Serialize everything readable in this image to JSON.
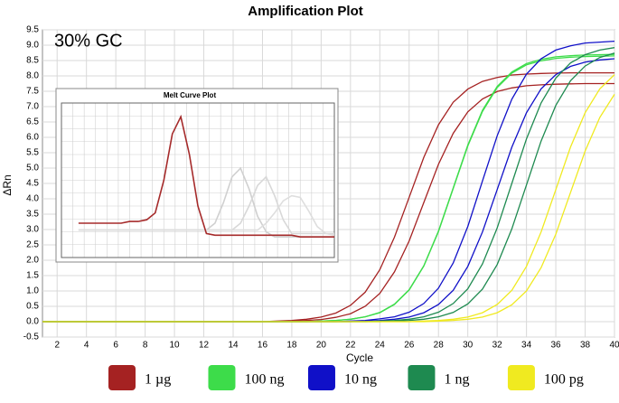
{
  "chart_data": [
    {
      "type": "line",
      "title": "Amplification Plot",
      "annotation": "30% GC",
      "x_label": "Cycle",
      "y_label": "ΔRn",
      "x": [
        1,
        2,
        3,
        4,
        5,
        6,
        7,
        8,
        9,
        10,
        11,
        12,
        13,
        14,
        15,
        16,
        17,
        18,
        19,
        20,
        21,
        22,
        23,
        24,
        25,
        26,
        27,
        28,
        29,
        30,
        31,
        32,
        33,
        34,
        35,
        36,
        37,
        38,
        39,
        40
      ],
      "xlim": [
        1,
        40
      ],
      "xticks": [
        2,
        4,
        6,
        8,
        10,
        12,
        14,
        16,
        18,
        20,
        22,
        24,
        26,
        28,
        30,
        32,
        34,
        36,
        38,
        40
      ],
      "ylim": [
        -0.5,
        9.5
      ],
      "yticks": [
        -0.5,
        {
          "value": 0,
          "label": "0.0"
        },
        0.5,
        {
          "value": 1,
          "label": "1.0"
        },
        1.5,
        {
          "value": 2,
          "label": "2.0"
        },
        2.5,
        {
          "value": 3,
          "label": "3.0"
        },
        3.5,
        {
          "value": 4,
          "label": "4.0"
        },
        4.5,
        {
          "value": 5,
          "label": "5.0"
        },
        5.5,
        {
          "value": 6,
          "label": "6.0"
        },
        6.5,
        {
          "value": 7,
          "label": "7.0"
        },
        7.5,
        {
          "value": 8,
          "label": "8.0"
        },
        8.5,
        {
          "value": 9,
          "label": "9.0"
        },
        9.5
      ],
      "grid": true,
      "series": [
        {
          "name": "1 µg",
          "color": "#a52222",
          "values": [
            0,
            0,
            0,
            0,
            0,
            0,
            0,
            0,
            0,
            0,
            0,
            0,
            0,
            0,
            0,
            0,
            0.02,
            0.04,
            0.08,
            0.15,
            0.28,
            0.53,
            0.96,
            1.69,
            2.75,
            4.05,
            5.35,
            6.41,
            7.14,
            7.57,
            7.82,
            7.95,
            8.03,
            8.06,
            8.08,
            8.09,
            8.1,
            8.1,
            8.1,
            8.1
          ]
        },
        {
          "name": "1 µg",
          "color": "#a52222",
          "values": [
            0,
            0,
            0,
            0,
            0,
            0,
            0,
            0,
            0,
            0,
            0,
            0,
            0,
            0,
            0,
            0,
            0,
            0.02,
            0.04,
            0.07,
            0.14,
            0.26,
            0.5,
            0.92,
            1.62,
            2.63,
            3.88,
            5.12,
            6.13,
            6.83,
            7.25,
            7.49,
            7.61,
            7.68,
            7.71,
            7.73,
            7.74,
            7.75,
            7.75,
            7.75
          ]
        },
        {
          "name": "100 ng",
          "color": "#3ddc4a",
          "values": [
            0,
            0,
            0,
            0,
            0,
            0,
            0,
            0,
            0,
            0,
            0,
            0,
            0,
            0,
            0,
            0,
            0,
            0,
            0,
            0.02,
            0.04,
            0.08,
            0.16,
            0.3,
            0.57,
            1.04,
            1.82,
            2.95,
            4.35,
            5.75,
            6.88,
            7.66,
            8.13,
            8.4,
            8.54,
            8.62,
            8.66,
            8.68,
            8.69,
            8.7
          ]
        },
        {
          "name": "100 ng",
          "color": "#3ddc4a",
          "values": [
            0,
            0,
            0,
            0,
            0,
            0,
            0,
            0,
            0,
            0,
            0,
            0,
            0,
            0,
            0,
            0,
            0,
            0,
            0,
            0.02,
            0.04,
            0.08,
            0.16,
            0.29,
            0.56,
            1.03,
            1.81,
            2.93,
            4.33,
            5.72,
            6.84,
            7.62,
            8.09,
            8.36,
            8.49,
            8.57,
            8.61,
            8.63,
            8.64,
            8.65
          ]
        },
        {
          "name": "10 ng",
          "color": "#1010c8",
          "values": [
            0,
            0,
            0,
            0,
            0,
            0,
            0,
            0,
            0,
            0,
            0,
            0,
            0,
            0,
            0,
            0,
            0,
            0,
            0,
            0,
            0,
            0.02,
            0.04,
            0.09,
            0.16,
            0.31,
            0.59,
            1.09,
            1.91,
            3.1,
            4.58,
            6.05,
            7.24,
            8.06,
            8.56,
            8.84,
            8.98,
            9.07,
            9.1,
            9.13
          ]
        },
        {
          "name": "10 ng",
          "color": "#1010c8",
          "values": [
            0,
            0,
            0,
            0,
            0,
            0,
            0,
            0,
            0,
            0,
            0,
            0,
            0,
            0,
            0,
            0,
            0,
            0,
            0,
            0,
            0,
            0,
            0.02,
            0.04,
            0.08,
            0.15,
            0.29,
            0.56,
            1.02,
            1.8,
            2.92,
            4.3,
            5.68,
            6.8,
            7.58,
            8.04,
            8.31,
            8.45,
            8.52,
            8.56
          ]
        },
        {
          "name": "1 ng",
          "color": "#1e8a50",
          "values": [
            0,
            0,
            0,
            0,
            0,
            0,
            0,
            0,
            0,
            0,
            0,
            0,
            0,
            0,
            0,
            0,
            0,
            0,
            0,
            0,
            0,
            0,
            0,
            0.02,
            0.04,
            0.08,
            0.16,
            0.31,
            0.59,
            1.07,
            1.88,
            3.05,
            4.5,
            5.95,
            7.12,
            7.93,
            8.42,
            8.69,
            8.84,
            8.92
          ]
        },
        {
          "name": "1 ng",
          "color": "#1e8a50",
          "values": [
            0,
            0,
            0,
            0,
            0,
            0,
            0,
            0,
            0,
            0,
            0,
            0,
            0,
            0,
            0,
            0,
            0,
            0,
            0,
            0,
            0,
            0,
            0,
            0,
            0.02,
            0.04,
            0.08,
            0.16,
            0.3,
            0.58,
            1.06,
            1.86,
            3.02,
            4.45,
            5.88,
            7.04,
            7.84,
            8.32,
            8.6,
            8.74
          ]
        },
        {
          "name": "100 pg",
          "color": "#f0ea20",
          "values": [
            0,
            0,
            0,
            0,
            0,
            0,
            0,
            0,
            0,
            0,
            0,
            0,
            0,
            0,
            0,
            0,
            0,
            0,
            0,
            0,
            0,
            0,
            0,
            0,
            0,
            0,
            0.02,
            0.04,
            0.08,
            0.15,
            0.29,
            0.56,
            1.02,
            1.8,
            2.92,
            4.3,
            5.68,
            6.8,
            7.58,
            8.04
          ]
        },
        {
          "name": "100 pg",
          "color": "#f0ea20",
          "values": [
            0,
            0,
            0,
            0,
            0,
            0,
            0,
            0,
            0,
            0,
            0,
            0,
            0,
            0,
            0,
            0,
            0,
            0,
            0,
            0,
            0,
            0,
            0,
            0,
            0,
            0,
            0,
            0.02,
            0.04,
            0.08,
            0.15,
            0.29,
            0.55,
            1.0,
            1.76,
            2.85,
            4.2,
            5.55,
            6.65,
            7.4
          ]
        }
      ]
    },
    {
      "type": "line",
      "title": "Melt Curve Plot",
      "x": [
        65,
        66,
        67,
        68,
        69,
        70,
        71,
        72,
        73,
        74,
        75,
        76,
        77,
        78,
        79,
        80,
        81,
        82,
        83,
        84,
        85,
        86,
        87,
        88,
        89,
        90,
        91,
        92,
        93,
        94,
        95
      ],
      "xlim": [
        63,
        95
      ],
      "ylim": [
        0,
        0.9
      ],
      "series": [
        {
          "color": "#d0d0d0",
          "values": [
            0.16,
            0.16,
            0.16,
            0.16,
            0.16,
            0.16,
            0.16,
            0.16,
            0.16,
            0.16,
            0.16,
            0.16,
            0.16,
            0.16,
            0.16,
            0.16,
            0.2,
            0.32,
            0.47,
            0.52,
            0.4,
            0.24,
            0.15,
            0.12,
            0.12,
            0.12,
            0.12,
            0.12,
            0.12,
            0.12,
            0.12
          ]
        },
        {
          "color": "#d8d8d8",
          "values": [
            0.16,
            0.16,
            0.16,
            0.16,
            0.16,
            0.16,
            0.16,
            0.16,
            0.16,
            0.16,
            0.16,
            0.16,
            0.16,
            0.16,
            0.16,
            0.16,
            0.16,
            0.16,
            0.16,
            0.2,
            0.3,
            0.42,
            0.47,
            0.36,
            0.22,
            0.14,
            0.14,
            0.14,
            0.14,
            0.14,
            0.14
          ]
        },
        {
          "color": "#dedede",
          "values": [
            0.16,
            0.16,
            0.16,
            0.16,
            0.16,
            0.16,
            0.16,
            0.16,
            0.16,
            0.16,
            0.16,
            0.16,
            0.16,
            0.16,
            0.16,
            0.16,
            0.16,
            0.16,
            0.16,
            0.16,
            0.16,
            0.16,
            0.2,
            0.26,
            0.33,
            0.36,
            0.35,
            0.27,
            0.18,
            0.14,
            0.13
          ]
        },
        {
          "color": "#a52a2a",
          "values": [
            0.2,
            0.2,
            0.2,
            0.2,
            0.2,
            0.2,
            0.21,
            0.21,
            0.22,
            0.26,
            0.45,
            0.72,
            0.82,
            0.6,
            0.3,
            0.14,
            0.13,
            0.13,
            0.13,
            0.13,
            0.13,
            0.13,
            0.13,
            0.13,
            0.13,
            0.13,
            0.12,
            0.12,
            0.12,
            0.12,
            0.12
          ]
        }
      ]
    }
  ]
}
